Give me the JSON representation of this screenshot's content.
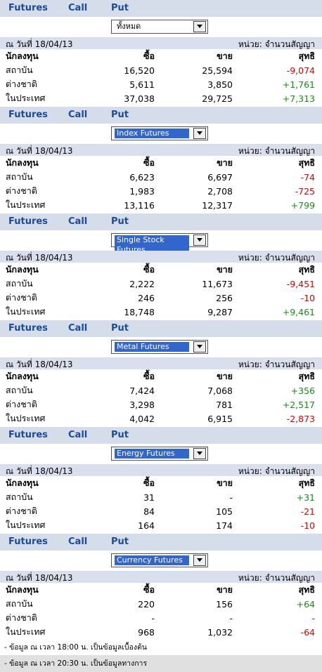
{
  "sections": [
    {
      "tabs": [
        "Futures",
        "Call",
        "Put"
      ],
      "selected": "ทั้งหมด",
      "date": "ณ วันที่ 18/04/13",
      "unit": "หน่วย: จำนวนสัญญา",
      "headers": [
        "นักลงทุน",
        "ซื้อ",
        "ขาย",
        "สุทธิ"
      ],
      "rows": [
        [
          "สถาบัน",
          "16,520",
          "25,594",
          "-9,074"
        ],
        [
          "ต่างชาติ",
          "5,611",
          "3,850",
          "+1,761"
        ],
        [
          "ในประเทศ",
          "37,038",
          "29,725",
          "+7,313"
        ]
      ]
    },
    {
      "tabs": [
        "Futures",
        "Call",
        "Put"
      ],
      "selected": "Index Futures",
      "date": "ณ วันที่ 18/04/13",
      "unit": "หน่วย: จำนวนสัญญา",
      "headers": [
        "นักลงทุน",
        "ซื้อ",
        "ขาย",
        "สุทธิ"
      ],
      "rows": [
        [
          "สถาบัน",
          "6,623",
          "6,697",
          "-74"
        ],
        [
          "ต่างชาติ",
          "1,983",
          "2,708",
          "-725"
        ],
        [
          "ในประเทศ",
          "13,116",
          "12,317",
          "+799"
        ]
      ]
    },
    {
      "tabs": [
        "Futures",
        "Call",
        "Put"
      ],
      "selected": "Single Stock Futures",
      "date": "ณ วันที่ 18/04/13",
      "unit": "หน่วย: จำนวนสัญญา",
      "headers": [
        "นักลงทุน",
        "ซื้อ",
        "ขาย",
        "สุทธิ"
      ],
      "rows": [
        [
          "สถาบัน",
          "2,222",
          "11,673",
          "-9,451"
        ],
        [
          "ต่างชาติ",
          "246",
          "256",
          "-10"
        ],
        [
          "ในประเทศ",
          "18,748",
          "9,287",
          "+9,461"
        ]
      ]
    },
    {
      "tabs": [
        "Futures",
        "Call",
        "Put"
      ],
      "selected": "Metal Futures",
      "date": "ณ วันที่ 18/04/13",
      "unit": "หน่วย: จำนวนสัญญา",
      "headers": [
        "นักลงทุน",
        "ซื้อ",
        "ขาย",
        "สุทธิ"
      ],
      "rows": [
        [
          "สถาบัน",
          "7,424",
          "7,068",
          "+356"
        ],
        [
          "ต่างชาติ",
          "3,298",
          "781",
          "+2,517"
        ],
        [
          "ในประเทศ",
          "4,042",
          "6,915",
          "-2,873"
        ]
      ]
    },
    {
      "tabs": [
        "Futures",
        "Call",
        "Put"
      ],
      "selected": "Energy Futures",
      "date": "ณ วันที่ 18/04/13",
      "unit": "หน่วย: จำนวนสัญญา",
      "headers": [
        "นักลงทุน",
        "ซื้อ",
        "ขาย",
        "สุทธิ"
      ],
      "rows": [
        [
          "สถาบัน",
          "31",
          "-",
          "+31"
        ],
        [
          "ต่างชาติ",
          "84",
          "105",
          "-21"
        ],
        [
          "ในประเทศ",
          "164",
          "174",
          "-10"
        ]
      ]
    },
    {
      "tabs": [
        "Futures",
        "Call",
        "Put"
      ],
      "selected": "Currency Futures",
      "date": "ณ วันที่ 18/04/13",
      "unit": "หน่วย: จำนวนสัญญา",
      "headers": [
        "นักลงทุน",
        "ซื้อ",
        "ขาย",
        "สุทธิ"
      ],
      "rows": [
        [
          "สถาบัน",
          "220",
          "156",
          "+64"
        ],
        [
          "ต่างชาติ",
          "-",
          "-",
          "-"
        ],
        [
          "ในประเทศ",
          "968",
          "1,032",
          "-64"
        ]
      ]
    }
  ],
  "notes": [
    "- ข้อมูล ณ เวลา 18:00 น. เป็นข้อมูลเบื้องต้น",
    "- ข้อมูล ณ เวลา 20:30 น. เป็นข้อมูลทางการ"
  ]
}
